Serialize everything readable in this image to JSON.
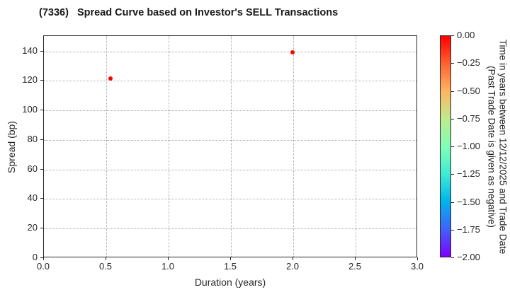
{
  "title": "(7336)   Spread Curve based on Investor's SELL Transactions",
  "chart_data": {
    "type": "scatter",
    "title": "(7336)   Spread Curve based on Investor's SELL Transactions",
    "xlabel": "Duration (years)",
    "ylabel": "Spread (bp)",
    "xlim": [
      0.0,
      3.0
    ],
    "ylim": [
      0,
      150.4
    ],
    "grid": true,
    "xticks": [
      0.0,
      0.5,
      1.0,
      1.5,
      2.0,
      2.5,
      3.0
    ],
    "xtick_labels": [
      "0.0",
      "0.5",
      "1.0",
      "1.5",
      "2.0",
      "2.5",
      "3.0"
    ],
    "yticks": [
      0,
      20,
      40,
      60,
      80,
      100,
      120,
      140
    ],
    "ytick_labels": [
      "0",
      "20",
      "40",
      "60",
      "80",
      "100",
      "120",
      "140"
    ],
    "points": [
      {
        "duration": 0.54,
        "spread": 121,
        "color": "#ff0000"
      },
      {
        "duration": 2.0,
        "spread": 139,
        "color": "#ff0000"
      }
    ],
    "colorbar": {
      "label_line1": "Time in years between 12/12/2025 and Trade Date",
      "label_line2": "(Past Trade Date is given as negative)",
      "colormap": "rainbow",
      "range_top_to_bottom": [
        0.0,
        -2.0
      ],
      "tick_values": [
        0.0,
        -0.25,
        -0.5,
        -0.75,
        -1.0,
        -1.25,
        -1.5,
        -1.75,
        -2.0
      ],
      "tick_labels": [
        "0.00",
        "−0.25",
        "−0.50",
        "−0.75",
        "−1.00",
        "−1.25",
        "−1.50",
        "−1.75",
        "−2.00"
      ],
      "gradient_stops_top_to_bottom": [
        "#ff0000",
        "#ff6232",
        "#ffb462",
        "#bfec8e",
        "#80ffb5",
        "#40ecd4",
        "#00b4ec",
        "#4062fa",
        "#7f00ff"
      ]
    },
    "colors": {
      "marker": "#ff0000",
      "grid": "#a8a8a8",
      "spine": "#262626",
      "text": "#262626",
      "background": "#ffffff"
    }
  }
}
